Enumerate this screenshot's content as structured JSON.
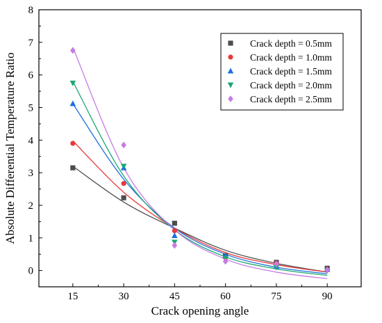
{
  "chart_data": {
    "type": "scatter",
    "title": "",
    "xlabel": "Crack opening angle",
    "ylabel": "Absolute Differential Temperature Ratio",
    "xlim": [
      5,
      100
    ],
    "ylim": [
      -0.5,
      8
    ],
    "xticks": [
      15,
      30,
      45,
      60,
      75,
      90
    ],
    "yticks": [
      0,
      1,
      2,
      3,
      4,
      5,
      6,
      7,
      8
    ],
    "grid": false,
    "legend_position": "top-right",
    "fit_lines": true,
    "x": [
      15,
      30,
      45,
      60,
      75,
      90
    ],
    "series": [
      {
        "name": "Crack depth = 0.5mm",
        "marker": "square",
        "color": "#4d4d4d",
        "values": [
          3.15,
          2.23,
          1.45,
          0.45,
          0.25,
          0.07
        ],
        "fit": [
          3.2,
          2.1,
          1.3,
          0.62,
          0.22,
          -0.05
        ]
      },
      {
        "name": "Crack depth = 1.0mm",
        "marker": "circle",
        "color": "#e8393a",
        "values": [
          3.9,
          2.67,
          1.22,
          0.4,
          0.22,
          0.02
        ],
        "fit": [
          3.98,
          2.4,
          1.3,
          0.55,
          0.18,
          -0.05
        ]
      },
      {
        "name": "Crack depth = 1.5mm",
        "marker": "triangle-up",
        "color": "#1e6fdc",
        "values": [
          5.12,
          3.15,
          1.07,
          0.47,
          0.12,
          0.03
        ],
        "fit": [
          5.12,
          2.8,
          1.3,
          0.5,
          0.1,
          -0.1
        ]
      },
      {
        "name": "Crack depth = 2.0mm",
        "marker": "triangle-down",
        "color": "#1aa872",
        "values": [
          5.75,
          3.2,
          0.87,
          0.38,
          0.1,
          0.0
        ],
        "fit": [
          5.8,
          2.9,
          1.25,
          0.42,
          0.05,
          -0.15
        ]
      },
      {
        "name": "Crack depth = 2.5mm",
        "marker": "diamond",
        "color": "#c77ae3",
        "values": [
          6.75,
          3.85,
          0.77,
          0.28,
          0.2,
          0.02
        ],
        "fit": [
          6.85,
          3.15,
          1.25,
          0.35,
          -0.05,
          -0.25
        ]
      }
    ]
  }
}
